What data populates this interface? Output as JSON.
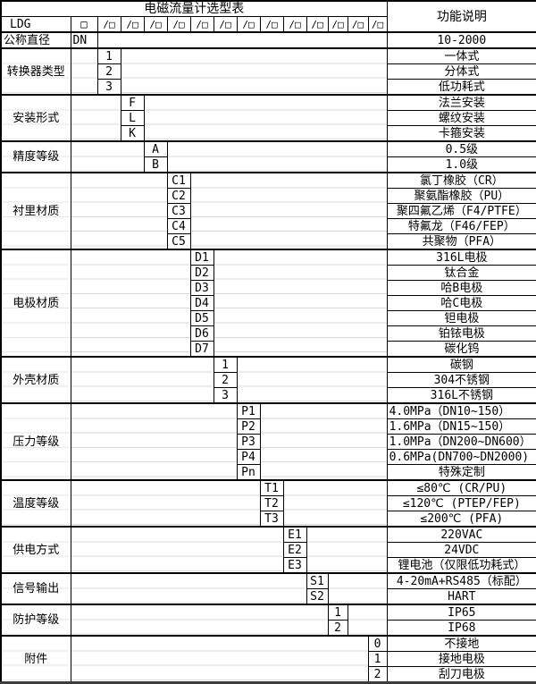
{
  "title": "电磁流量计选型表",
  "header": {
    "model_prefix": "LDG",
    "box_symbol": "□",
    "right_header": "功能说明",
    "slots": [
      "/□",
      "/□",
      "/□",
      "/□",
      "/□",
      "/□",
      "/□",
      "/□",
      "/□",
      "/□",
      "/□",
      "/□",
      "/□"
    ]
  },
  "colors": {
    "border": "#000000",
    "faint_grid": "#d9d9d9",
    "background": "#ffffff",
    "text": "#000000"
  },
  "sections": [
    {
      "name": "公称直径",
      "col": 1,
      "codes": [
        "DN"
      ],
      "descs": [
        "10-2000"
      ]
    },
    {
      "name": "转换器类型",
      "col": 2,
      "codes": [
        "1",
        "2",
        "3"
      ],
      "descs": [
        "一体式",
        "分体式",
        "低功耗式"
      ]
    },
    {
      "name": "安装形式",
      "col": 3,
      "codes": [
        "F",
        "L",
        "K"
      ],
      "descs": [
        "法兰安装",
        "螺纹安装",
        "卡箍安装"
      ]
    },
    {
      "name": "精度等级",
      "col": 4,
      "codes": [
        "A",
        "B"
      ],
      "descs": [
        "0.5级",
        "1.0级"
      ]
    },
    {
      "name": "衬里材质",
      "col": 5,
      "codes": [
        "C1",
        "C2",
        "C3",
        "C4",
        "C5"
      ],
      "descs": [
        "氯丁橡胶（CR）",
        "聚氨酯橡胶（PU）",
        "聚四氟乙烯（F4/PTFE）",
        "特氟龙（F46/FEP）",
        "共聚物（PFA）"
      ]
    },
    {
      "name": "电极材质",
      "col": 6,
      "codes": [
        "D1",
        "D2",
        "D3",
        "D4",
        "D5",
        "D6",
        "D7"
      ],
      "descs": [
        "316L电极",
        "钛合金",
        "哈B电极",
        "哈C电极",
        "钽电极",
        "铂铱电极",
        "碳化钨"
      ]
    },
    {
      "name": "外壳材质",
      "col": 7,
      "codes": [
        "1",
        "2",
        "3"
      ],
      "descs": [
        "碳钢",
        "304不锈钢",
        "316L不锈钢"
      ]
    },
    {
      "name": "压力等级",
      "col": 8,
      "codes": [
        "P1",
        "P2",
        "P3",
        "P4",
        "Pn"
      ],
      "descs": [
        "4.0MPa（DN10~150）",
        "1.6MPa（DN15~150）",
        "1.0MPa（DN200~DN600）",
        "0.6MPa(DN700~DN2000)",
        "特殊定制"
      ],
      "desc_align": [
        "left",
        "left",
        "left",
        "left",
        ""
      ]
    },
    {
      "name": "温度等级",
      "col": 9,
      "codes": [
        "T1",
        "T2",
        "T3"
      ],
      "descs": [
        "≤80℃ (CR/PU)",
        "≤120℃ (PTEP/FEP)",
        "≤200℃ (PFA)"
      ]
    },
    {
      "name": "供电方式",
      "col": 10,
      "codes": [
        "E1",
        "E2",
        "E3"
      ],
      "descs": [
        "220VAC",
        "24VDC",
        "锂电池（仅限低功耗式）"
      ]
    },
    {
      "name": "信号输出",
      "col": 11,
      "codes": [
        "S1",
        "S2"
      ],
      "descs": [
        "4-20mA+RS485（标配）",
        "HART"
      ]
    },
    {
      "name": "防护等级",
      "col": 12,
      "codes": [
        "1",
        "2"
      ],
      "descs": [
        "IP65",
        "IP68"
      ]
    },
    {
      "name": "附件",
      "col": 14,
      "codes": [
        "0",
        "1",
        "2"
      ],
      "descs": [
        "不接地",
        "接地电极",
        "刮刀电极"
      ]
    }
  ]
}
